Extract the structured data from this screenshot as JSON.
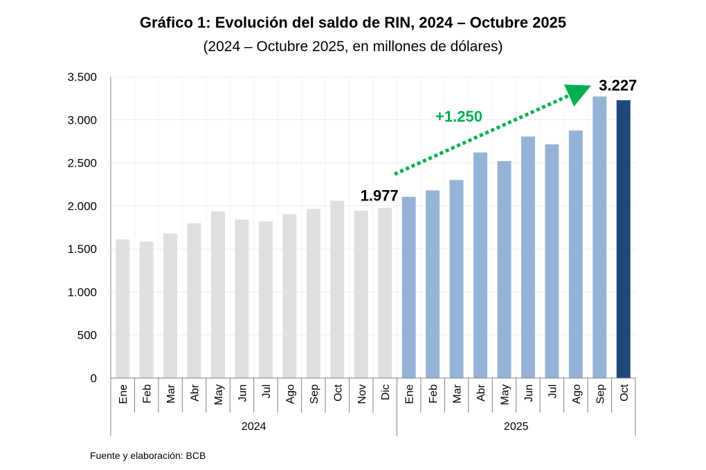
{
  "chart_data": {
    "type": "bar",
    "title": "Gráfico 1: Evolución del saldo de RIN, 2024 – Octubre 2025",
    "subtitle": "(2024 – Octubre 2025, en millones de dólares)",
    "source": "Fuente y elaboración: BCB",
    "ylim": [
      0,
      3500
    ],
    "yticks": [
      0,
      500,
      1000,
      1500,
      2000,
      2500,
      3000,
      3500
    ],
    "ytick_labels": [
      "0",
      "500",
      "1.000",
      "1.500",
      "2.000",
      "2.500",
      "3.000",
      "3.500"
    ],
    "grid": true,
    "groups": [
      {
        "label": "2024",
        "count": 12
      },
      {
        "label": "2025",
        "count": 10
      }
    ],
    "categories": [
      "Ene",
      "Feb",
      "Mar",
      "Abr",
      "May",
      "Jun",
      "Jul",
      "Ago",
      "Sep",
      "Oct",
      "Nov",
      "Dic",
      "Ene",
      "Feb",
      "Mar",
      "Abr",
      "May",
      "Jun",
      "Jul",
      "Ago",
      "Sep",
      "Oct"
    ],
    "values": [
      1610,
      1585,
      1680,
      1800,
      1935,
      1840,
      1820,
      1905,
      1965,
      2060,
      1945,
      1977,
      2105,
      2180,
      2300,
      2620,
      2520,
      2805,
      2715,
      2875,
      3270,
      3227
    ],
    "bar_colors": [
      "#e0e0e0",
      "#e0e0e0",
      "#e0e0e0",
      "#e0e0e0",
      "#e0e0e0",
      "#e0e0e0",
      "#e0e0e0",
      "#e0e0e0",
      "#e0e0e0",
      "#e0e0e0",
      "#e0e0e0",
      "#e0e0e0",
      "#95b3d7",
      "#95b3d7",
      "#95b3d7",
      "#95b3d7",
      "#95b3d7",
      "#95b3d7",
      "#95b3d7",
      "#95b3d7",
      "#95b3d7",
      "#1f497d"
    ],
    "annotations": {
      "start_label": "1.977",
      "end_label": "3.227",
      "change_label": "+1.250",
      "change_color": "#00b050"
    }
  }
}
